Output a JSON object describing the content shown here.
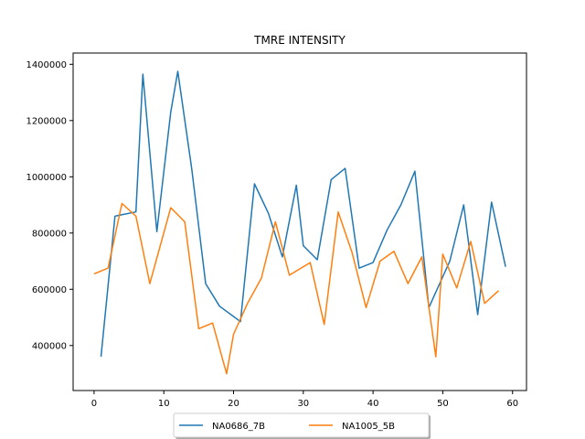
{
  "chart_data": {
    "type": "line",
    "title": "TMRE INTENSITY",
    "xlabel": "",
    "ylabel": "",
    "xlim": [
      -3,
      62
    ],
    "ylim": [
      240000,
      1440000
    ],
    "xticks": [
      0,
      10,
      20,
      30,
      40,
      50,
      60
    ],
    "yticks": [
      400000,
      600000,
      800000,
      1000000,
      1200000,
      1400000
    ],
    "grid": false,
    "legend": {
      "placement": "bottom-center",
      "columns": 2
    },
    "series": [
      {
        "name": "NA0686_7B",
        "color": "#1f77b4",
        "x": [
          1,
          3,
          6,
          7,
          9,
          11,
          12,
          14,
          16,
          18,
          21,
          23,
          25,
          27,
          29,
          30,
          32,
          34,
          36,
          38,
          40,
          42,
          44,
          46,
          48,
          51,
          53,
          55,
          57,
          59
        ],
        "y": [
          360000,
          860000,
          875000,
          1365000,
          805000,
          1230000,
          1375000,
          1030000,
          620000,
          540000,
          485000,
          975000,
          870000,
          715000,
          970000,
          755000,
          705000,
          990000,
          1030000,
          675000,
          695000,
          810000,
          900000,
          1020000,
          535000,
          700000,
          900000,
          510000,
          910000,
          680000
        ]
      },
      {
        "name": "NA1005_5B",
        "color": "#ff7f0e",
        "x": [
          0,
          2,
          4,
          6,
          8,
          11,
          13,
          15,
          17,
          19,
          20,
          22,
          24,
          26,
          28,
          31,
          33,
          35,
          37,
          39,
          41,
          43,
          45,
          47,
          49,
          50,
          52,
          54,
          56,
          58
        ],
        "y": [
          655000,
          675000,
          905000,
          860000,
          620000,
          890000,
          840000,
          460000,
          480000,
          300000,
          440000,
          550000,
          640000,
          840000,
          650000,
          695000,
          475000,
          875000,
          730000,
          535000,
          700000,
          735000,
          620000,
          715000,
          360000,
          725000,
          605000,
          770000,
          550000,
          595000
        ]
      }
    ]
  }
}
